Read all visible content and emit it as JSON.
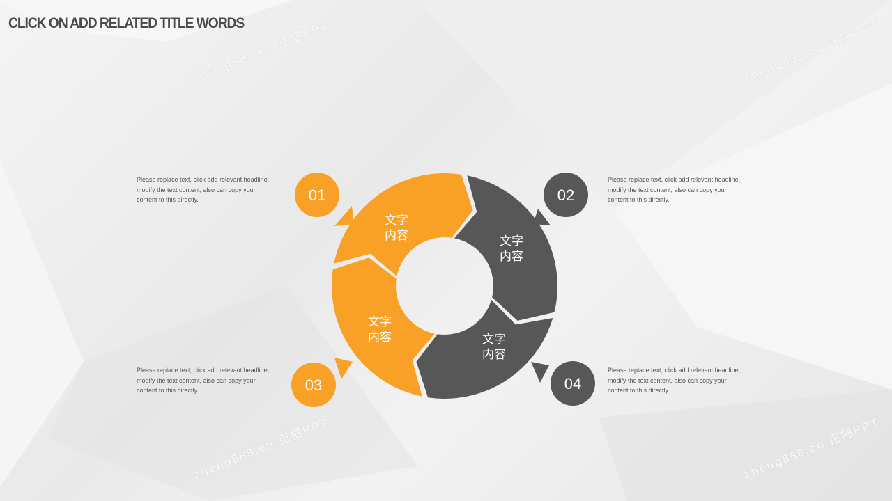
{
  "title": "CLICK ON ADD RELATED TITLE WORDS",
  "watermark": "zheng888.cn 正把PPT",
  "colors": {
    "orange": "#f9a026",
    "gray": "#575757"
  },
  "steps": [
    {
      "number": "01",
      "line1": "文字",
      "line2": "内容",
      "desc": "Please replace text, click add relevant headline, modify the text content, also can copy your content to this directly.",
      "color": "orange"
    },
    {
      "number": "02",
      "line1": "文字",
      "line2": "内容",
      "desc": "Please replace text, click add relevant headline, modify the text content, also can copy your content to this directly.",
      "color": "gray"
    },
    {
      "number": "03",
      "line1": "文字",
      "line2": "内容",
      "desc": "Please replace text, click add relevant headline, modify the text content, also can copy your content to this directly.",
      "color": "orange"
    },
    {
      "number": "04",
      "line1": "文字",
      "line2": "内容",
      "desc": "Please replace text, click add relevant headline, modify the text content, also can copy your content to this directly.",
      "color": "gray"
    }
  ]
}
